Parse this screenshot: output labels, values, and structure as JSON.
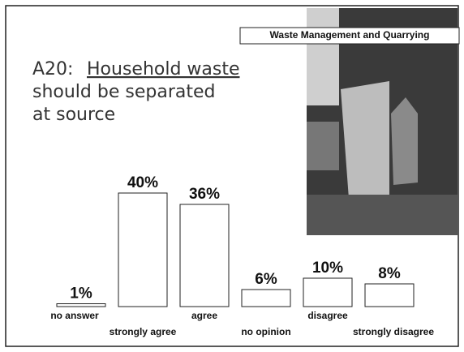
{
  "chart_data": {
    "type": "bar",
    "header": "Waste Management and Quarrying",
    "title": [
      "A20:",
      "Household waste",
      "should be separated",
      "at source"
    ],
    "categories": [
      "no answer",
      "strongly agree",
      "agree",
      "no opinion",
      "disagree",
      "strongly disagree"
    ],
    "values": [
      1,
      40,
      36,
      6,
      10,
      8
    ],
    "value_labels": [
      "1%",
      "40%",
      "36%",
      "6%",
      "10%",
      "8%"
    ],
    "color": "#ffffff"
  }
}
